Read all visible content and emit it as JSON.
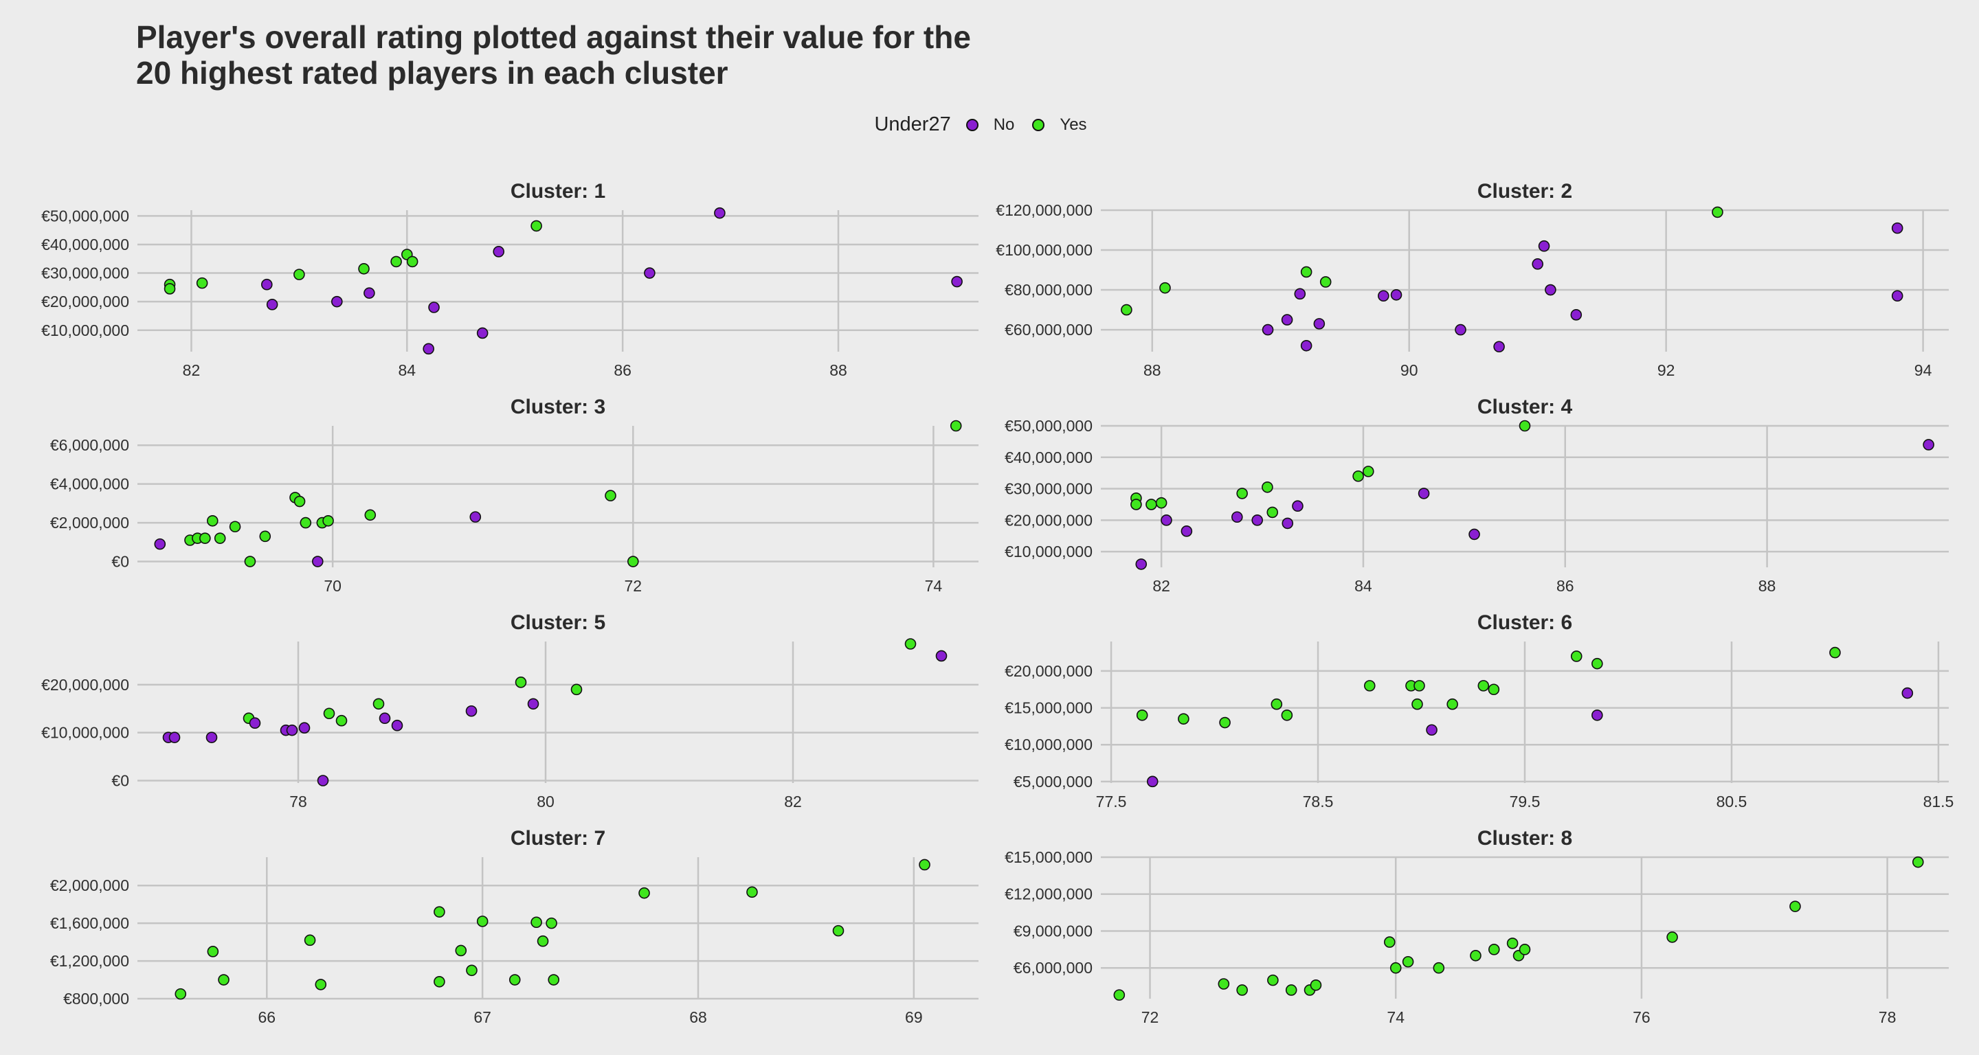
{
  "title_line1": "Player's overall rating plotted against their value for the",
  "title_line2": "20 highest rated players in each cluster",
  "legend": {
    "title": "Under27",
    "items": [
      {
        "label": "No",
        "color": "#8a1fd1"
      },
      {
        "label": "Yes",
        "color": "#3fe61e"
      }
    ]
  },
  "chart_data": [
    {
      "type": "scatter",
      "title": "Cluster: 1",
      "xlim": [
        81.5,
        89.3
      ],
      "ylim": [
        2500000,
        52000000
      ],
      "xticks": [
        82,
        84,
        86,
        88
      ],
      "xticklabels": [
        "82",
        "84",
        "86",
        "88"
      ],
      "yticks": [
        10000000,
        20000000,
        30000000,
        40000000,
        50000000
      ],
      "yticklabels": [
        "€10,000,000",
        "€20,000,000",
        "€30,000,000",
        "€40,000,000",
        "€50,000,000"
      ],
      "points": [
        [
          81.8,
          26000000,
          "Yes"
        ],
        [
          81.8,
          24500000,
          "Yes"
        ],
        [
          82.1,
          26500000,
          "Yes"
        ],
        [
          82.7,
          26000000,
          "No"
        ],
        [
          82.75,
          19000000,
          "No"
        ],
        [
          83.0,
          29500000,
          "Yes"
        ],
        [
          83.35,
          20000000,
          "No"
        ],
        [
          83.6,
          31500000,
          "Yes"
        ],
        [
          83.65,
          23000000,
          "No"
        ],
        [
          83.9,
          34000000,
          "Yes"
        ],
        [
          84.0,
          36500000,
          "Yes"
        ],
        [
          84.05,
          34000000,
          "Yes"
        ],
        [
          84.25,
          18000000,
          "No"
        ],
        [
          84.2,
          3500000,
          "No"
        ],
        [
          84.7,
          9000000,
          "No"
        ],
        [
          84.85,
          37500000,
          "No"
        ],
        [
          85.2,
          46500000,
          "Yes"
        ],
        [
          86.25,
          30000000,
          "No"
        ],
        [
          86.9,
          51000000,
          "No"
        ],
        [
          89.1,
          27000000,
          "No"
        ]
      ]
    },
    {
      "type": "scatter",
      "title": "Cluster: 2",
      "xlim": [
        87.6,
        94.2
      ],
      "ylim": [
        49000000,
        120000000
      ],
      "xticks": [
        88,
        90,
        92,
        94
      ],
      "xticklabels": [
        "88",
        "90",
        "92",
        "94"
      ],
      "yticks": [
        60000000,
        80000000,
        100000000,
        120000000
      ],
      "yticklabels": [
        "€60,000,000",
        "€80,000,000",
        "€100,000,000",
        "€120,000,000"
      ],
      "points": [
        [
          87.8,
          70000000,
          "Yes"
        ],
        [
          88.1,
          81000000,
          "Yes"
        ],
        [
          88.9,
          60000000,
          "No"
        ],
        [
          89.05,
          65000000,
          "No"
        ],
        [
          89.15,
          78000000,
          "No"
        ],
        [
          89.2,
          89000000,
          "Yes"
        ],
        [
          89.3,
          63000000,
          "No"
        ],
        [
          89.2,
          52000000,
          "No"
        ],
        [
          89.35,
          84000000,
          "Yes"
        ],
        [
          89.8,
          77000000,
          "No"
        ],
        [
          89.9,
          77500000,
          "No"
        ],
        [
          90.4,
          60000000,
          "No"
        ],
        [
          90.7,
          51500000,
          "No"
        ],
        [
          91.0,
          93000000,
          "No"
        ],
        [
          91.05,
          102000000,
          "No"
        ],
        [
          91.1,
          80000000,
          "No"
        ],
        [
          91.3,
          67500000,
          "No"
        ],
        [
          92.4,
          119000000,
          "Yes"
        ],
        [
          93.8,
          111000000,
          "No"
        ],
        [
          93.8,
          77000000,
          "No"
        ]
      ]
    },
    {
      "type": "scatter",
      "title": "Cluster: 3",
      "xlim": [
        68.7,
        74.3
      ],
      "ylim": [
        -300000,
        7000000
      ],
      "xticks": [
        70,
        72,
        74
      ],
      "xticklabels": [
        "70",
        "72",
        "74"
      ],
      "yticks": [
        0,
        2000000,
        4000000,
        6000000
      ],
      "yticklabels": [
        "€0",
        "€2,000,000",
        "€4,000,000",
        "€6,000,000"
      ],
      "points": [
        [
          68.85,
          900000,
          "No"
        ],
        [
          69.05,
          1100000,
          "Yes"
        ],
        [
          69.1,
          1200000,
          "Yes"
        ],
        [
          69.15,
          1200000,
          "Yes"
        ],
        [
          69.2,
          2100000,
          "Yes"
        ],
        [
          69.25,
          1200000,
          "Yes"
        ],
        [
          69.35,
          1800000,
          "Yes"
        ],
        [
          69.45,
          0,
          "Yes"
        ],
        [
          69.55,
          1300000,
          "Yes"
        ],
        [
          69.75,
          3300000,
          "Yes"
        ],
        [
          69.78,
          3100000,
          "Yes"
        ],
        [
          69.82,
          2000000,
          "Yes"
        ],
        [
          69.9,
          0,
          "No"
        ],
        [
          69.93,
          2000000,
          "Yes"
        ],
        [
          69.97,
          2100000,
          "Yes"
        ],
        [
          70.25,
          2400000,
          "Yes"
        ],
        [
          70.95,
          2300000,
          "No"
        ],
        [
          71.85,
          3400000,
          "Yes"
        ],
        [
          72.0,
          0,
          "Yes"
        ],
        [
          74.15,
          7000000,
          "Yes"
        ]
      ]
    },
    {
      "type": "scatter",
      "title": "Cluster: 4",
      "xlim": [
        81.4,
        89.8
      ],
      "ylim": [
        5000000,
        50000000
      ],
      "xticks": [
        82,
        84,
        86,
        88
      ],
      "xticklabels": [
        "82",
        "84",
        "86",
        "88"
      ],
      "yticks": [
        10000000,
        20000000,
        30000000,
        40000000,
        50000000
      ],
      "yticklabels": [
        "€10,000,000",
        "€20,000,000",
        "€30,000,000",
        "€40,000,000",
        "€50,000,000"
      ],
      "points": [
        [
          81.75,
          27000000,
          "Yes"
        ],
        [
          81.75,
          25000000,
          "Yes"
        ],
        [
          81.8,
          6000000,
          "No"
        ],
        [
          81.9,
          25000000,
          "Yes"
        ],
        [
          82.0,
          25500000,
          "Yes"
        ],
        [
          82.05,
          20000000,
          "No"
        ],
        [
          82.25,
          16500000,
          "No"
        ],
        [
          82.75,
          21000000,
          "No"
        ],
        [
          82.8,
          28500000,
          "Yes"
        ],
        [
          82.95,
          20000000,
          "No"
        ],
        [
          83.05,
          30500000,
          "Yes"
        ],
        [
          83.1,
          22500000,
          "Yes"
        ],
        [
          83.25,
          19000000,
          "No"
        ],
        [
          83.35,
          24500000,
          "No"
        ],
        [
          83.95,
          34000000,
          "Yes"
        ],
        [
          84.05,
          35500000,
          "Yes"
        ],
        [
          84.6,
          28500000,
          "No"
        ],
        [
          85.1,
          15500000,
          "No"
        ],
        [
          85.6,
          50000000,
          "Yes"
        ],
        [
          89.6,
          44000000,
          "No"
        ]
      ]
    },
    {
      "type": "scatter",
      "title": "Cluster: 5",
      "xlim": [
        76.7,
        83.5
      ],
      "ylim": [
        -500000,
        29000000
      ],
      "xticks": [
        78,
        80,
        82
      ],
      "xticklabels": [
        "78",
        "80",
        "82"
      ],
      "yticks": [
        0,
        10000000,
        20000000
      ],
      "yticklabels": [
        "€0",
        "€10,000,000",
        "€20,000,000"
      ],
      "points": [
        [
          76.95,
          9000000,
          "No"
        ],
        [
          77.0,
          9000000,
          "No"
        ],
        [
          77.3,
          9000000,
          "No"
        ],
        [
          77.6,
          13000000,
          "Yes"
        ],
        [
          77.65,
          12000000,
          "No"
        ],
        [
          77.9,
          10500000,
          "No"
        ],
        [
          77.95,
          10500000,
          "No"
        ],
        [
          78.05,
          11000000,
          "No"
        ],
        [
          78.2,
          0,
          "No"
        ],
        [
          78.25,
          14000000,
          "Yes"
        ],
        [
          78.35,
          12500000,
          "Yes"
        ],
        [
          78.65,
          16000000,
          "Yes"
        ],
        [
          78.7,
          13000000,
          "No"
        ],
        [
          78.8,
          11500000,
          "No"
        ],
        [
          79.4,
          14500000,
          "No"
        ],
        [
          79.8,
          20500000,
          "Yes"
        ],
        [
          79.9,
          16000000,
          "No"
        ],
        [
          80.25,
          19000000,
          "Yes"
        ],
        [
          82.95,
          28500000,
          "Yes"
        ],
        [
          83.2,
          26000000,
          "No"
        ]
      ]
    },
    {
      "type": "scatter",
      "title": "Cluster: 6",
      "xlim": [
        77.45,
        81.55
      ],
      "ylim": [
        4800000,
        24000000
      ],
      "xticks": [
        77.5,
        78.5,
        79.5,
        80.5,
        81.5
      ],
      "xticklabels": [
        "77.5",
        "78.5",
        "79.5",
        "80.5",
        "81.5"
      ],
      "yticks": [
        5000000,
        10000000,
        15000000,
        20000000
      ],
      "yticklabels": [
        "€5,000,000",
        "€10,000,000",
        "€15,000,000",
        "€20,000,000"
      ],
      "points": [
        [
          77.65,
          14000000,
          "Yes"
        ],
        [
          77.7,
          5000000,
          "No"
        ],
        [
          77.85,
          13500000,
          "Yes"
        ],
        [
          78.05,
          13000000,
          "Yes"
        ],
        [
          78.3,
          15500000,
          "Yes"
        ],
        [
          78.35,
          14000000,
          "Yes"
        ],
        [
          78.75,
          18000000,
          "Yes"
        ],
        [
          78.95,
          18000000,
          "Yes"
        ],
        [
          78.98,
          15500000,
          "Yes"
        ],
        [
          78.99,
          18000000,
          "Yes"
        ],
        [
          79.05,
          12000000,
          "No"
        ],
        [
          79.15,
          15500000,
          "Yes"
        ],
        [
          79.3,
          18000000,
          "Yes"
        ],
        [
          79.35,
          17500000,
          "Yes"
        ],
        [
          79.75,
          22000000,
          "Yes"
        ],
        [
          79.85,
          21000000,
          "Yes"
        ],
        [
          79.85,
          14000000,
          "No"
        ],
        [
          81.0,
          22500000,
          "Yes"
        ],
        [
          81.35,
          17000000,
          "No"
        ]
      ]
    },
    {
      "type": "scatter",
      "title": "Cluster: 7",
      "xlim": [
        65.4,
        69.3
      ],
      "ylim": [
        800000,
        2300000
      ],
      "xticks": [
        66,
        67,
        68,
        69
      ],
      "xticklabels": [
        "66",
        "67",
        "68",
        "69"
      ],
      "yticks": [
        800000,
        1200000,
        1600000,
        2000000
      ],
      "yticklabels": [
        "€800,000",
        "€1,200,000",
        "€1,600,000",
        "€2,000,000"
      ],
      "points": [
        [
          65.6,
          850000,
          "Yes"
        ],
        [
          65.75,
          1300000,
          "Yes"
        ],
        [
          65.8,
          1000000,
          "Yes"
        ],
        [
          66.2,
          1420000,
          "Yes"
        ],
        [
          66.25,
          950000,
          "Yes"
        ],
        [
          66.8,
          1720000,
          "Yes"
        ],
        [
          66.8,
          980000,
          "Yes"
        ],
        [
          66.9,
          1310000,
          "Yes"
        ],
        [
          66.95,
          1100000,
          "Yes"
        ],
        [
          67.0,
          1620000,
          "Yes"
        ],
        [
          67.15,
          1000000,
          "Yes"
        ],
        [
          67.25,
          1610000,
          "Yes"
        ],
        [
          67.28,
          1410000,
          "Yes"
        ],
        [
          67.32,
          1600000,
          "Yes"
        ],
        [
          67.33,
          1000000,
          "Yes"
        ],
        [
          67.75,
          1920000,
          "Yes"
        ],
        [
          68.25,
          1930000,
          "Yes"
        ],
        [
          68.65,
          1520000,
          "Yes"
        ],
        [
          69.05,
          2220000,
          "Yes"
        ]
      ]
    },
    {
      "type": "scatter",
      "title": "Cluster: 8",
      "xlim": [
        71.6,
        78.5
      ],
      "ylim": [
        3500000,
        15000000
      ],
      "xticks": [
        72,
        74,
        76,
        78
      ],
      "xticklabels": [
        "72",
        "74",
        "76",
        "78"
      ],
      "yticks": [
        6000000,
        9000000,
        12000000,
        15000000
      ],
      "yticklabels": [
        "€6,000,000",
        "€9,000,000",
        "€12,000,000",
        "€15,000,000"
      ],
      "points": [
        [
          71.75,
          3800000,
          "Yes"
        ],
        [
          72.6,
          4700000,
          "Yes"
        ],
        [
          72.75,
          4200000,
          "Yes"
        ],
        [
          73.0,
          5000000,
          "Yes"
        ],
        [
          73.15,
          4200000,
          "Yes"
        ],
        [
          73.3,
          4200000,
          "Yes"
        ],
        [
          73.35,
          4600000,
          "Yes"
        ],
        [
          73.95,
          8100000,
          "Yes"
        ],
        [
          74.0,
          6000000,
          "Yes"
        ],
        [
          74.1,
          6500000,
          "Yes"
        ],
        [
          74.35,
          6000000,
          "Yes"
        ],
        [
          74.65,
          7000000,
          "Yes"
        ],
        [
          74.8,
          7500000,
          "Yes"
        ],
        [
          74.95,
          8000000,
          "Yes"
        ],
        [
          75.0,
          7000000,
          "Yes"
        ],
        [
          75.05,
          7500000,
          "Yes"
        ],
        [
          76.25,
          8500000,
          "Yes"
        ],
        [
          77.25,
          11000000,
          "Yes"
        ],
        [
          78.25,
          14600000,
          "Yes"
        ]
      ]
    }
  ]
}
